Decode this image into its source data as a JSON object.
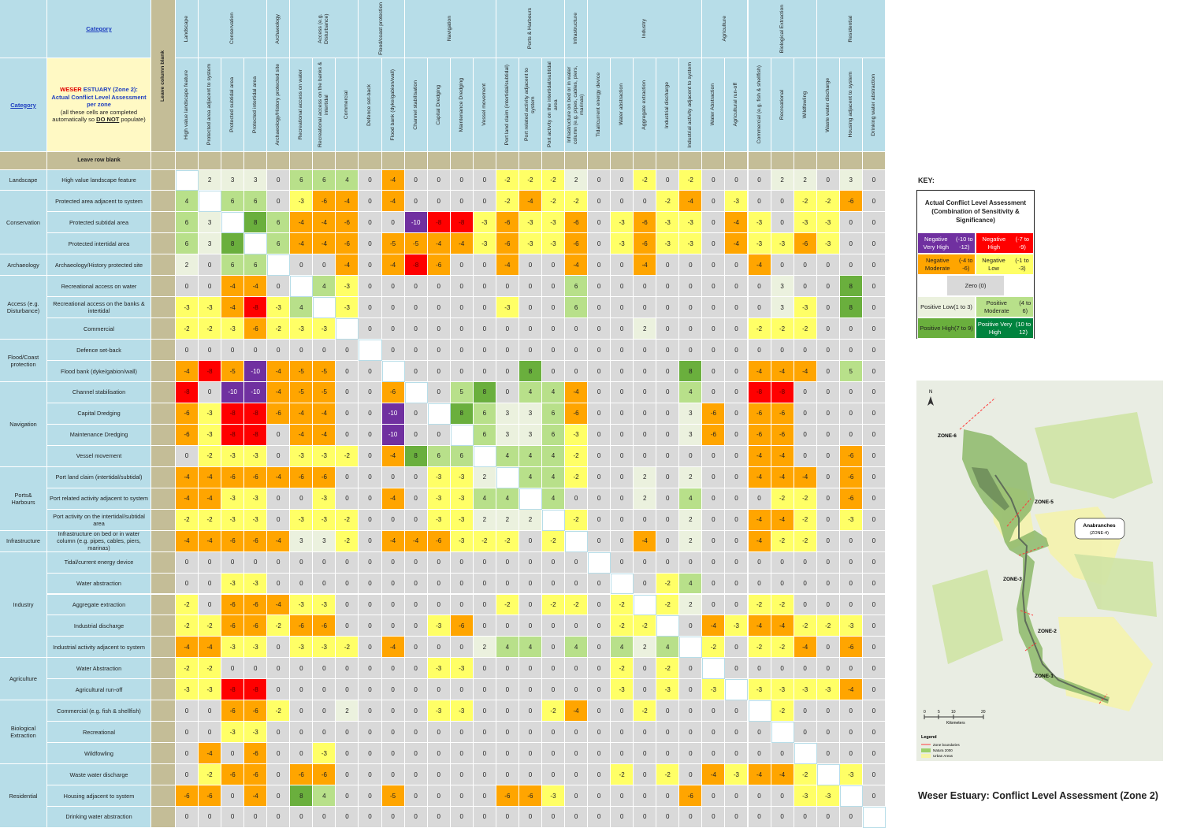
{
  "colors": {
    "header": "#b7dde8",
    "blank_col": "#c4bd97",
    "neg_very_high": "#7030a0",
    "neg_high": "#ff0000",
    "neg_moderate": "#ffa500",
    "neg_low": "#ffff66",
    "zero": "#d9d9d9",
    "pos_low": "#ebf1de",
    "pos_moderate": "#b8e08a",
    "pos_high": "#6aaf3d",
    "pos_very_high": "#00833e",
    "diagonal": "#ffffff"
  },
  "header": {
    "category_top": "Category",
    "category_left": "Category",
    "leave_column": "Leave column blank",
    "leave_row": "Leave row blank",
    "title_red": "WESER",
    "title_rest": " ESTUARY (Zone 2):  Actual Conflict Level Assessment per zone",
    "note_pre": "(all these cells are completed automatically so ",
    "note_bold": "DO NOT",
    "note_post": " populate)"
  },
  "groups": [
    {
      "name": "Landscape",
      "count": 1
    },
    {
      "name": "Conservation",
      "count": 3
    },
    {
      "name": "Archaeology",
      "count": 1
    },
    {
      "name": "Access (e.g. Disturbance)",
      "count": 3
    },
    {
      "name": "Flood/coast protection",
      "count": 2
    },
    {
      "name": "Navigation",
      "count": 4
    },
    {
      "name": "Ports & Harbours",
      "count": 3
    },
    {
      "name": "Infrastructure",
      "count": 1
    },
    {
      "name": "Industry",
      "count": 5
    },
    {
      "name": "Agriculture",
      "count": 2
    },
    {
      "name": "Biological Extraction",
      "count": 3
    },
    {
      "name": "Residential",
      "count": 3
    }
  ],
  "row_groups": [
    {
      "name": "Landscape",
      "count": 1
    },
    {
      "name": "Conservation",
      "count": 3
    },
    {
      "name": "Archaeology",
      "count": 1
    },
    {
      "name": "Access (e.g. Disturbance)",
      "count": 3
    },
    {
      "name": "Flood/Coast protection",
      "count": 2
    },
    {
      "name": "Navigation",
      "count": 4
    },
    {
      "name": "Ports& Harbours",
      "count": 3
    },
    {
      "name": "Infrastructure",
      "count": 1
    },
    {
      "name": "Industry",
      "count": 5
    },
    {
      "name": "Agriculture",
      "count": 2
    },
    {
      "name": "Biological Extraction",
      "count": 3
    },
    {
      "name": "Residential",
      "count": 3
    }
  ],
  "columns": [
    "High value landscape feature",
    "Protected area adjacent to system",
    "Protected subtidal area",
    "Protected intertidal area",
    "Archaeology/History protected site",
    "Recreational access on water",
    "Recreational access on the banks & intertidal",
    "Commercial",
    "Defence set-back",
    "Flood bank (dyke/gabion/wall)",
    "Channel stabilisation",
    "Capital Dredging",
    "Maintenance Dredging",
    "Vessel movement",
    "Port land claim (intertidal/subtidal)",
    "Port related activity adjacent to system",
    "Port activity on the intertidal/subtidal area",
    "Infrastructure on bed or in water column (e.g. pipes, cables, piers, marinas)",
    "Tidal/current energy device",
    "Water abstraction",
    "Aggregate extraction",
    "Industrial discharge",
    "Industrial activity adjacent to system",
    "Water Abstraction",
    "Agricultural run-off",
    "Commercial (e.g. fish & shellfish)",
    "Recreational",
    "Wildfowling",
    "Waste water discharge",
    "Housing adjacent to system",
    "Drinking water abstraction"
  ],
  "rows": [
    "High value landscape feature",
    "Protected area adjacent to system",
    "Protected subtidal area",
    "Protected intertidal area",
    "Archaeology/History protected site",
    "Recreational access on water",
    "Recreational access on the banks & intertidal",
    "Commercial",
    "Defence set-back",
    "Flood bank (dyke/gabion/wall)",
    "Channel stabilisation",
    "Capital Dredging",
    "Maintenance Dredging",
    "Vessel movement",
    "Port land claim (intertidal/subtidal)",
    "Port related activity adjacent to system",
    "Port activity on the intertidal/subtidal area",
    "Infrastructure on bed or in water column (e.g. pipes, cables, piers, marinas)",
    "Tidal/current energy device",
    "Water abstraction",
    "Aggregate extraction",
    "Industrial discharge",
    "Industrial activity adjacent to system",
    "Water Abstraction",
    "Agricultural run-off",
    "Commercial (e.g. fish & shellfish)",
    "Recreational",
    "Wildfowling",
    "Waste water discharge",
    "Housing adjacent to system",
    "Drinking water abstraction"
  ],
  "matrix": [
    [
      "",
      2,
      3,
      3,
      0,
      6,
      6,
      4,
      0,
      -4,
      0,
      0,
      0,
      0,
      -2,
      -2,
      -2,
      2,
      0,
      0,
      -2,
      0,
      -2,
      0,
      0,
      0,
      2,
      2,
      0,
      3,
      0
    ],
    [
      4,
      "",
      6,
      6,
      0,
      -3,
      -6,
      -4,
      0,
      -4,
      0,
      0,
      0,
      0,
      -2,
      -4,
      -2,
      -2,
      0,
      0,
      0,
      -2,
      -4,
      0,
      -3,
      0,
      0,
      -2,
      -2,
      -6,
      0
    ],
    [
      6,
      3,
      "",
      8,
      6,
      -4,
      -4,
      -6,
      0,
      0,
      -10,
      -8,
      -8,
      -3,
      -6,
      -3,
      -3,
      -6,
      0,
      -3,
      -6,
      -3,
      -3,
      0,
      -4,
      -3,
      0,
      -3,
      -3,
      0,
      0
    ],
    [
      6,
      3,
      8,
      "",
      6,
      -4,
      -4,
      -6,
      0,
      -5,
      -5,
      -4,
      -4,
      -3,
      -6,
      -3,
      -3,
      -6,
      0,
      -3,
      -6,
      -3,
      -3,
      0,
      -4,
      -3,
      -3,
      -6,
      -3,
      0,
      0
    ],
    [
      2,
      0,
      6,
      6,
      "",
      0,
      0,
      -4,
      0,
      -4,
      -8,
      -6,
      0,
      0,
      -4,
      0,
      0,
      -4,
      0,
      0,
      -4,
      0,
      0,
      0,
      0,
      -4,
      0,
      0,
      0,
      0,
      0
    ],
    [
      0,
      0,
      -4,
      -4,
      0,
      "",
      4,
      -3,
      0,
      0,
      0,
      0,
      0,
      0,
      0,
      0,
      0,
      6,
      0,
      0,
      0,
      0,
      0,
      0,
      0,
      0,
      3,
      0,
      0,
      8,
      0
    ],
    [
      -3,
      -3,
      -4,
      -8,
      -3,
      4,
      "",
      -3,
      0,
      0,
      0,
      0,
      0,
      0,
      -3,
      0,
      0,
      6,
      0,
      0,
      0,
      0,
      0,
      0,
      0,
      0,
      3,
      -3,
      0,
      8,
      0
    ],
    [
      -2,
      -2,
      -3,
      -6,
      -2,
      -3,
      -3,
      "",
      0,
      0,
      0,
      0,
      0,
      0,
      0,
      0,
      0,
      0,
      0,
      0,
      2,
      0,
      0,
      0,
      0,
      -2,
      -2,
      -2,
      0,
      0,
      0
    ],
    [
      0,
      0,
      0,
      0,
      0,
      0,
      0,
      0,
      "",
      0,
      0,
      0,
      0,
      0,
      0,
      0,
      0,
      0,
      0,
      0,
      0,
      0,
      0,
      0,
      0,
      0,
      0,
      0,
      0,
      0,
      0
    ],
    [
      -4,
      -8,
      -5,
      -10,
      -4,
      -5,
      -5,
      0,
      0,
      "",
      0,
      0,
      0,
      0,
      0,
      8,
      0,
      0,
      0,
      0,
      0,
      0,
      8,
      0,
      0,
      -4,
      -4,
      -4,
      0,
      5,
      0
    ],
    [
      -8,
      0,
      -10,
      -10,
      -4,
      -5,
      -5,
      0,
      0,
      -6,
      "",
      0,
      5,
      8,
      0,
      4,
      4,
      -4,
      0,
      0,
      0,
      0,
      4,
      0,
      0,
      -8,
      -8,
      0,
      0,
      0,
      0
    ],
    [
      -6,
      -3,
      -8,
      -8,
      -6,
      -4,
      -4,
      0,
      0,
      -10,
      0,
      "",
      8,
      6,
      3,
      3,
      6,
      -6,
      0,
      0,
      0,
      0,
      3,
      -6,
      0,
      -6,
      -6,
      0,
      0,
      0,
      0
    ],
    [
      -6,
      -3,
      -8,
      -8,
      0,
      -4,
      -4,
      0,
      0,
      -10,
      0,
      0,
      "",
      6,
      3,
      3,
      6,
      -3,
      0,
      0,
      0,
      0,
      3,
      -6,
      0,
      -6,
      -6,
      0,
      0,
      0,
      0
    ],
    [
      0,
      -2,
      -3,
      -3,
      0,
      -3,
      -3,
      -2,
      0,
      -4,
      8,
      6,
      6,
      "",
      4,
      4,
      4,
      -2,
      0,
      0,
      0,
      0,
      0,
      0,
      0,
      -4,
      -4,
      0,
      0,
      -6,
      0
    ],
    [
      -4,
      -4,
      -6,
      -6,
      -4,
      -6,
      -6,
      0,
      0,
      0,
      0,
      -3,
      -3,
      2,
      "",
      4,
      4,
      -2,
      0,
      0,
      2,
      0,
      2,
      0,
      0,
      -4,
      -4,
      -4,
      0,
      -6,
      0
    ],
    [
      -4,
      -4,
      -3,
      -3,
      0,
      0,
      -3,
      0,
      0,
      -4,
      0,
      -3,
      -3,
      4,
      4,
      "",
      4,
      0,
      0,
      0,
      2,
      0,
      4,
      0,
      0,
      0,
      -2,
      -2,
      0,
      -6,
      0
    ],
    [
      -2,
      -2,
      -3,
      -3,
      0,
      -3,
      -3,
      -2,
      0,
      0,
      0,
      -3,
      -3,
      2,
      2,
      2,
      "",
      -2,
      0,
      0,
      0,
      0,
      2,
      0,
      0,
      -4,
      -4,
      -2,
      0,
      -3,
      0
    ],
    [
      -4,
      -4,
      -6,
      -6,
      -4,
      3,
      3,
      -2,
      0,
      -4,
      -4,
      -6,
      -3,
      -2,
      -2,
      0,
      -2,
      "",
      0,
      0,
      -4,
      0,
      2,
      0,
      0,
      -4,
      -2,
      -2,
      0,
      0,
      0
    ],
    [
      0,
      0,
      0,
      0,
      0,
      0,
      0,
      0,
      0,
      0,
      0,
      0,
      0,
      0,
      0,
      0,
      0,
      0,
      "",
      0,
      0,
      0,
      0,
      0,
      0,
      0,
      0,
      0,
      0,
      0,
      0
    ],
    [
      0,
      0,
      -3,
      -3,
      0,
      0,
      0,
      0,
      0,
      0,
      0,
      0,
      0,
      0,
      0,
      0,
      0,
      0,
      0,
      "",
      0,
      -2,
      4,
      0,
      0,
      0,
      0,
      0,
      0,
      0,
      0
    ],
    [
      -2,
      0,
      -6,
      -6,
      -4,
      -3,
      -3,
      0,
      0,
      0,
      0,
      0,
      0,
      0,
      -2,
      0,
      -2,
      -2,
      0,
      -2,
      "",
      -2,
      2,
      0,
      0,
      -2,
      -2,
      0,
      0,
      0,
      0
    ],
    [
      -2,
      -2,
      -6,
      -6,
      -2,
      -6,
      -6,
      0,
      0,
      0,
      0,
      -3,
      -6,
      0,
      0,
      0,
      0,
      0,
      0,
      -2,
      -2,
      "",
      0,
      -4,
      -3,
      -4,
      -4,
      -2,
      -2,
      -3,
      0
    ],
    [
      -4,
      -4,
      -3,
      -3,
      0,
      -3,
      -3,
      -2,
      0,
      -4,
      0,
      0,
      0,
      2,
      4,
      4,
      0,
      4,
      0,
      4,
      2,
      4,
      "",
      -2,
      0,
      -2,
      -2,
      -4,
      0,
      -6,
      0
    ],
    [
      -2,
      -2,
      0,
      0,
      0,
      0,
      0,
      0,
      0,
      0,
      0,
      -3,
      -3,
      0,
      0,
      0,
      0,
      0,
      0,
      -2,
      0,
      -2,
      0,
      "",
      0,
      0,
      0,
      0,
      0,
      0,
      0
    ],
    [
      -3,
      -3,
      -8,
      -8,
      0,
      0,
      0,
      0,
      0,
      0,
      0,
      0,
      0,
      0,
      0,
      0,
      0,
      0,
      0,
      -3,
      0,
      -3,
      0,
      -3,
      "",
      -3,
      -3,
      -3,
      -3,
      -4,
      0
    ],
    [
      0,
      0,
      -6,
      -6,
      -2,
      0,
      0,
      2,
      0,
      0,
      0,
      -3,
      -3,
      0,
      0,
      0,
      -2,
      -4,
      0,
      0,
      -2,
      0,
      0,
      0,
      0,
      "",
      -2,
      0,
      0,
      0,
      0
    ],
    [
      0,
      0,
      -3,
      -3,
      0,
      0,
      0,
      0,
      0,
      0,
      0,
      0,
      0,
      0,
      0,
      0,
      0,
      0,
      0,
      0,
      0,
      0,
      0,
      0,
      0,
      0,
      "",
      0,
      0,
      0,
      0
    ],
    [
      0,
      -4,
      0,
      -6,
      0,
      0,
      -3,
      0,
      0,
      0,
      0,
      0,
      0,
      0,
      0,
      0,
      0,
      0,
      0,
      0,
      0,
      0,
      0,
      0,
      0,
      0,
      0,
      "",
      0,
      0,
      0
    ],
    [
      0,
      -2,
      -6,
      -6,
      0,
      -6,
      -6,
      0,
      0,
      0,
      0,
      0,
      0,
      0,
      0,
      0,
      0,
      0,
      0,
      -2,
      0,
      -2,
      0,
      -4,
      -3,
      -4,
      -4,
      -2,
      "",
      -3,
      0
    ],
    [
      -6,
      -6,
      0,
      -4,
      0,
      8,
      4,
      0,
      0,
      -5,
      0,
      0,
      0,
      0,
      -6,
      -6,
      -3,
      0,
      0,
      0,
      0,
      0,
      -6,
      0,
      0,
      0,
      0,
      -3,
      -3,
      "",
      0
    ],
    [
      0,
      0,
      0,
      0,
      0,
      0,
      0,
      0,
      0,
      0,
      0,
      0,
      0,
      0,
      0,
      0,
      0,
      0,
      0,
      0,
      0,
      0,
      0,
      0,
      0,
      0,
      0,
      0,
      0,
      0,
      ""
    ]
  ],
  "key": {
    "label": "KEY:",
    "title": "Actual Conflict Level Assessment (Combination of Sensitivity & Significance)",
    "items": [
      {
        "label": "Negative Very High",
        "range": "(-10 to -12)",
        "color": "#7030a0",
        "text_color": "#ffffff"
      },
      {
        "label": "Negative High",
        "range": "(-7 to -9)",
        "color": "#ff0000",
        "text_color": "#ffffff"
      },
      {
        "label": "Negative Moderate",
        "range": "(-4 to -6)",
        "color": "#ffa500",
        "text_color": "#222222"
      },
      {
        "label": "Negative Low",
        "range": "(-1 to -3)",
        "color": "#ffff66",
        "text_color": "#222222"
      },
      {
        "label": "Zero (0)",
        "range": "",
        "color": "#d9d9d9",
        "text_color": "#222222"
      },
      {
        "label": "Positive Low",
        "range": "(1 to 3)",
        "color": "#ebf1de",
        "text_color": "#222222"
      },
      {
        "label": "Positive Moderate",
        "range": "(4 to 6)",
        "color": "#b8e08a",
        "text_color": "#222222"
      },
      {
        "label": "Positive High",
        "range": "(7 to 9)",
        "color": "#6aaf3d",
        "text_color": "#222222"
      },
      {
        "label": "Positive Very High",
        "range": "(10 to 12)",
        "color": "#00833e",
        "text_color": "#ffffff"
      }
    ]
  },
  "map": {
    "north": "N",
    "zones": [
      "ZONE-6",
      "ZONE-5",
      "ZONE-3",
      "ZONE-2",
      "ZONE-1"
    ],
    "anabranches": "Anabranches",
    "anabranches_zone": "(ZONE-4)",
    "scale_ticks": [
      "0",
      "5",
      "10",
      "20"
    ],
    "scale_unit": "Kilometers",
    "legend_title": "Legend",
    "legend_items": [
      {
        "label": "Zone boundaries",
        "color": "#ff3b3b"
      },
      {
        "label": "Natura 2000",
        "color": "#9ccf6a"
      },
      {
        "label": "Urban Areas",
        "color": "#f6f4a6"
      }
    ],
    "land_color": "#e9ede3",
    "natura_color": "#cfe3a4"
  },
  "caption": "Weser Estuary:  Conflict Level Assessment (Zone 2)"
}
